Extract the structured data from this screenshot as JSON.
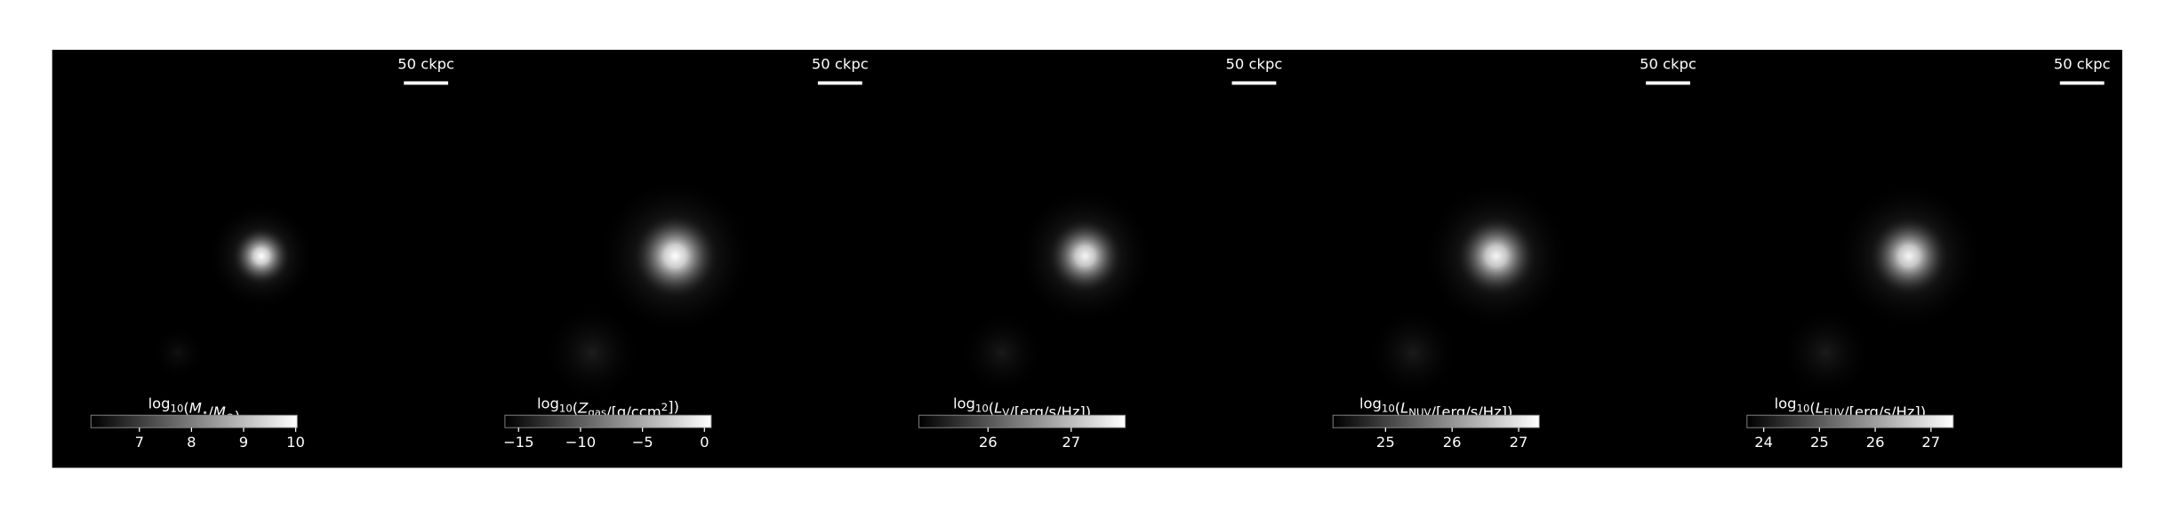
{
  "chart_data": [
    {
      "type": "image",
      "scale_bar_label": "50 ckpc",
      "colorbar_label": [
        {
          "t": "log"
        },
        {
          "t": "10",
          "sub": true
        },
        {
          "t": "("
        },
        {
          "t": "M",
          "it": true
        },
        {
          "t": "⋆",
          "sub": true
        },
        {
          "t": "/"
        },
        {
          "t": "M",
          "it": true
        },
        {
          "t": "⊙",
          "sub": true
        },
        {
          "t": ")"
        }
      ],
      "clim": [
        6.07,
        10.03
      ],
      "cticks": [
        7,
        8,
        9,
        10
      ]
    },
    {
      "type": "image",
      "scale_bar_label": "50 ckpc",
      "colorbar_label": [
        {
          "t": "log"
        },
        {
          "t": "10",
          "sub": true
        },
        {
          "t": "("
        },
        {
          "t": "Z",
          "it": true
        },
        {
          "t": "gas",
          "sub": true
        },
        {
          "t": "/[g/ccm"
        },
        {
          "t": "2",
          "sup": true
        },
        {
          "t": "])"
        }
      ],
      "clim": [
        -16.1,
        0.55
      ],
      "cticks": [
        {
          "value": -15,
          "label": "−15"
        },
        {
          "value": -10,
          "label": "−10"
        },
        {
          "value": -5,
          "label": "−5"
        },
        0
      ]
    },
    {
      "type": "image",
      "scale_bar_label": "50 ckpc",
      "colorbar_label": [
        {
          "t": "log"
        },
        {
          "t": "10",
          "sub": true
        },
        {
          "t": "("
        },
        {
          "t": "L",
          "it": true
        },
        {
          "t": "V",
          "sub": true
        },
        {
          "t": "/[erg/s/Hz])"
        }
      ],
      "clim": [
        25.17,
        27.65
      ],
      "cticks": [
        26,
        27
      ]
    },
    {
      "type": "image",
      "scale_bar_label": "50 ckpc",
      "colorbar_label": [
        {
          "t": "log"
        },
        {
          "t": "10",
          "sub": true
        },
        {
          "t": "("
        },
        {
          "t": "L",
          "it": true
        },
        {
          "t": "NUV",
          "sub": true
        },
        {
          "t": "/[erg/s/Hz])"
        }
      ],
      "clim": [
        24.21,
        27.31
      ],
      "cticks": [
        25,
        26,
        27
      ]
    },
    {
      "type": "image",
      "scale_bar_label": "50 ckpc",
      "colorbar_label": [
        {
          "t": "log"
        },
        {
          "t": "10",
          "sub": true
        },
        {
          "t": "("
        },
        {
          "t": "L",
          "it": true
        },
        {
          "t": "FUV",
          "sub": true
        },
        {
          "t": "/[erg/s/Hz])"
        }
      ],
      "clim": [
        23.7,
        27.4
      ],
      "cticks": [
        24,
        25,
        26,
        27
      ]
    }
  ]
}
